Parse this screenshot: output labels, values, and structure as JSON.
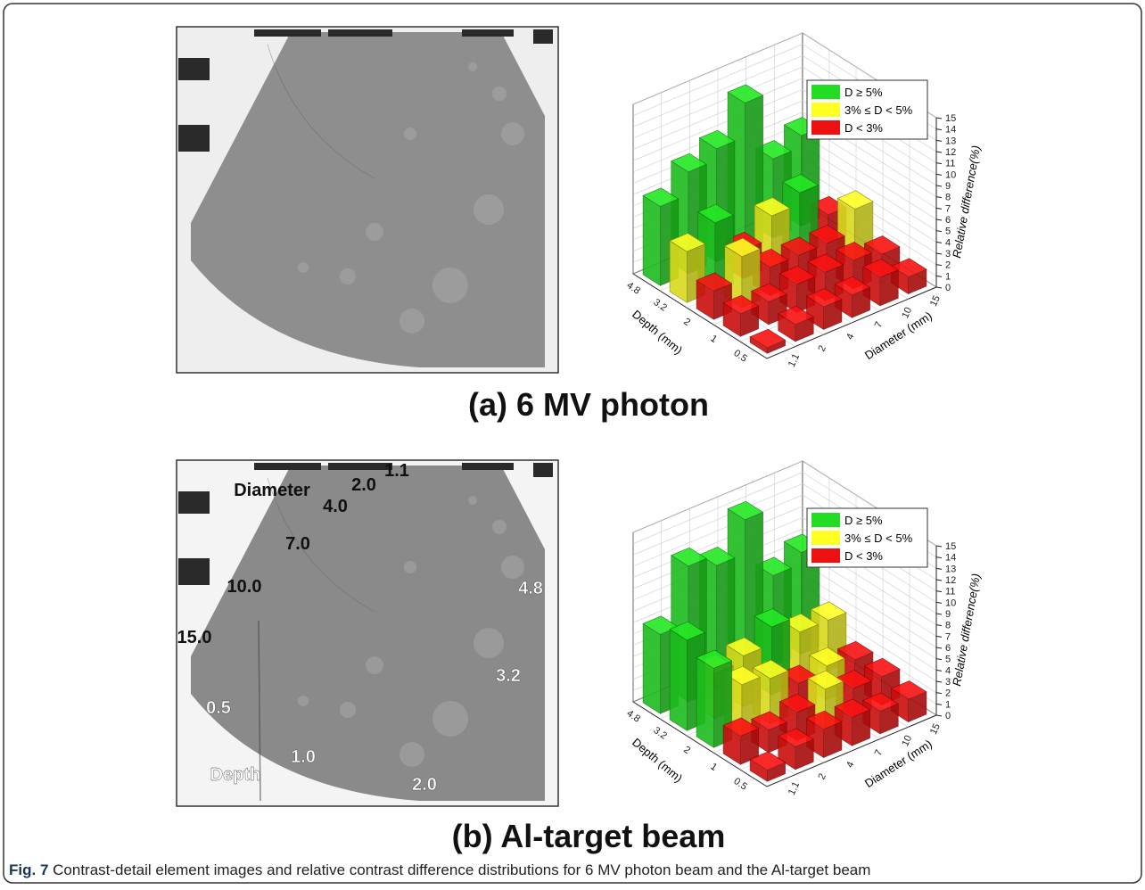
{
  "panels": [
    {
      "title": "(a) 6 MV photon",
      "image_labels": []
    },
    {
      "title": "(b) Al-target beam",
      "image_labels": [
        "Diameter",
        "2.0",
        "1.1",
        "4.0",
        "7.0",
        "10.0",
        "15.0",
        "4.8",
        "3.2",
        "0.5",
        "1.0",
        "Depth",
        "2.0"
      ]
    }
  ],
  "caption": {
    "label": "Fig. 7",
    "text": "Contrast-detail element images and relative contrast difference distributions for 6 MV photon beam and the Al-target beam"
  },
  "chart_data": [
    {
      "type": "bar3d",
      "depth": {
        "label": "Depth (mm)",
        "categories": [
          "0.5",
          "1",
          "2",
          "3.2",
          "4.8"
        ]
      },
      "diameter": {
        "label": "Diameter (mm)",
        "categories": [
          "1.1",
          "2",
          "4",
          "7",
          "10",
          "15"
        ]
      },
      "ylabel": "Relative difference(%)",
      "ylim": [
        0,
        15
      ],
      "yticks": [
        0,
        1,
        2,
        3,
        4,
        5,
        6,
        7,
        8,
        9,
        10,
        11,
        12,
        13,
        14,
        15
      ],
      "grid": true,
      "legend": "top-right",
      "series": [
        {
          "name": "D ≥ 5%",
          "color": "#22dd22",
          "values": [
            [
              null,
              null,
              null,
              null,
              null,
              null
            ],
            [
              null,
              null,
              null,
              null,
              null,
              null
            ],
            [
              null,
              null,
              null,
              null,
              null,
              null
            ],
            [
              null,
              6,
              null,
              null,
              5.5,
              null
            ],
            [
              7,
              9,
              10,
              13,
              7,
              8
            ]
          ]
        },
        {
          "name": "3% ≤ D < 5%",
          "color": "#ffff22",
          "values": [
            [
              null,
              null,
              null,
              null,
              null,
              null
            ],
            [
              null,
              null,
              null,
              null,
              null,
              null
            ],
            [
              null,
              4.5,
              null,
              null,
              null,
              4.5
            ],
            [
              4.5,
              null,
              null,
              4.5,
              null,
              null
            ],
            [
              null,
              null,
              null,
              null,
              null,
              null
            ]
          ]
        },
        {
          "name": "D < 3%",
          "color": "#ee1111",
          "values": [
            [
              0.5,
              1.5,
              2,
              2,
              2.5,
              1.5
            ],
            [
              2,
              2,
              2.5,
              2.5,
              2.5,
              2
            ],
            [
              2.5,
              null,
              2.5,
              2.5,
              2.5,
              null
            ],
            [
              null,
              null,
              2.5,
              null,
              null,
              2.5
            ],
            [
              null,
              null,
              null,
              null,
              null,
              null
            ]
          ]
        }
      ]
    },
    {
      "type": "bar3d",
      "depth": {
        "label": "Depth (mm)",
        "categories": [
          "0.5",
          "1",
          "2",
          "3.2",
          "4.8"
        ]
      },
      "diameter": {
        "label": "Diameter (mm)",
        "categories": [
          "1.1",
          "2",
          "4",
          "7",
          "10",
          "15"
        ]
      },
      "ylabel": "Relative difference(%)",
      "ylim": [
        0,
        15
      ],
      "yticks": [
        0,
        1,
        2,
        3,
        4,
        5,
        6,
        7,
        8,
        9,
        10,
        11,
        12,
        13,
        14,
        15
      ],
      "grid": true,
      "legend": "top-right",
      "series": [
        {
          "name": "D ≥ 5%",
          "color": "#22dd22",
          "values": [
            [
              null,
              null,
              null,
              null,
              null,
              null
            ],
            [
              null,
              null,
              null,
              null,
              null,
              null
            ],
            [
              7,
              null,
              null,
              null,
              null,
              null
            ],
            [
              8,
              null,
              null,
              6,
              null,
              null
            ],
            [
              7,
              12,
              11,
              14,
              8,
              9
            ]
          ]
        },
        {
          "name": "3% ≤ D < 5%",
          "color": "#ffff22",
          "values": [
            [
              null,
              null,
              null,
              null,
              null,
              null
            ],
            [
              null,
              null,
              null,
              3.5,
              null,
              null
            ],
            [
              null,
              4.5,
              4,
              null,
              3,
              null
            ],
            [
              null,
              4,
              4.5,
              null,
              4.5,
              4.5
            ],
            [
              null,
              null,
              null,
              null,
              null,
              null
            ]
          ]
        },
        {
          "name": "D < 3%",
          "color": "#ee1111",
          "values": [
            [
              1,
              2,
              2.5,
              2.5,
              2,
              2
            ],
            [
              2.5,
              2,
              2.5,
              null,
              2.5,
              2.5
            ],
            [
              null,
              null,
              null,
              2.5,
              null,
              2.5
            ],
            [
              null,
              null,
              null,
              null,
              null,
              null
            ],
            [
              null,
              null,
              null,
              null,
              null,
              null
            ]
          ]
        }
      ]
    }
  ]
}
